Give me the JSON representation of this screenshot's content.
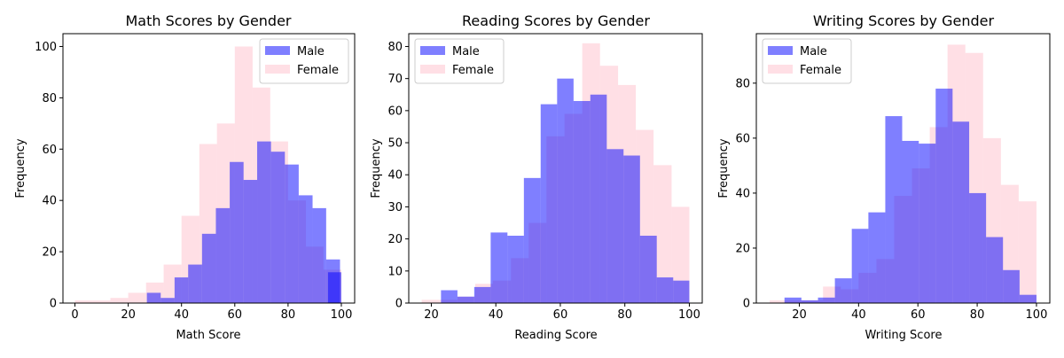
{
  "colors": {
    "male": "#0000ff",
    "female": "#ffc0cb",
    "axis": "#000000"
  },
  "chart_data": [
    {
      "type": "histogram",
      "title": "Math Scores by Gender",
      "xlabel": "Math Score",
      "ylabel": "Frequency",
      "xlim": [
        -4.5,
        105
      ],
      "ylim": [
        0,
        105
      ],
      "xticks": [
        0,
        20,
        40,
        60,
        80,
        100
      ],
      "yticks": [
        0,
        20,
        40,
        60,
        80,
        100
      ],
      "legend": "top-right",
      "series": [
        {
          "name": "Male",
          "color": "#0000ff",
          "alpha": 0.5,
          "bins": [
            [
              27,
              32.2,
              4
            ],
            [
              32.2,
              37.4,
              2
            ],
            [
              37.4,
              42.5,
              10
            ],
            [
              42.5,
              47.7,
              15
            ],
            [
              47.7,
              52.9,
              27
            ],
            [
              52.9,
              58.1,
              37
            ],
            [
              58.1,
              63.3,
              55
            ],
            [
              63.3,
              68.4,
              48
            ],
            [
              68.4,
              73.6,
              63
            ],
            [
              73.6,
              78.8,
              59
            ],
            [
              78.8,
              84,
              54
            ],
            [
              84,
              89.2,
              42
            ],
            [
              89.2,
              94.3,
              37
            ],
            [
              94.3,
              99.5,
              17
            ],
            [
              95,
              100,
              12
            ]
          ]
        },
        {
          "name": "Female",
          "color": "#ffc0cb",
          "alpha": 0.5,
          "bins": [
            [
              0,
              6.7,
              1
            ],
            [
              6.7,
              13.3,
              1
            ],
            [
              13.3,
              20,
              2
            ],
            [
              20,
              26.7,
              4
            ],
            [
              26.7,
              33.3,
              8
            ],
            [
              33.3,
              40,
              15
            ],
            [
              40,
              46.7,
              34
            ],
            [
              46.7,
              53.3,
              62
            ],
            [
              53.3,
              60,
              70
            ],
            [
              60,
              66.7,
              100
            ],
            [
              66.7,
              73.3,
              84
            ],
            [
              73.3,
              80,
              63
            ],
            [
              80,
              86.7,
              40
            ],
            [
              86.7,
              93.3,
              22
            ],
            [
              93.3,
              100,
              13
            ]
          ]
        }
      ]
    },
    {
      "type": "histogram",
      "title": "Reading Scores by Gender",
      "xlabel": "Reading Score",
      "ylabel": "Frequency",
      "xlim": [
        13,
        104
      ],
      "ylim": [
        0,
        84
      ],
      "xticks": [
        20,
        40,
        60,
        80,
        100
      ],
      "yticks": [
        0,
        10,
        20,
        30,
        40,
        50,
        60,
        70,
        80
      ],
      "legend": "top-left",
      "series": [
        {
          "name": "Male",
          "color": "#0000ff",
          "alpha": 0.5,
          "bins": [
            [
              23,
              28.1,
              4
            ],
            [
              28.1,
              33.3,
              2
            ],
            [
              33.3,
              38.4,
              5
            ],
            [
              38.4,
              43.6,
              22
            ],
            [
              43.6,
              48.7,
              21
            ],
            [
              48.7,
              53.9,
              39
            ],
            [
              53.9,
              59,
              62
            ],
            [
              59,
              64.1,
              70
            ],
            [
              64.1,
              69.3,
              63
            ],
            [
              69.3,
              74.4,
              65
            ],
            [
              74.4,
              79.6,
              48
            ],
            [
              79.6,
              84.7,
              46
            ],
            [
              84.7,
              89.9,
              21
            ],
            [
              89.9,
              95,
              8
            ],
            [
              95,
              100,
              7
            ]
          ]
        },
        {
          "name": "Female",
          "color": "#ffc0cb",
          "alpha": 0.5,
          "bins": [
            [
              17,
              22.5,
              1
            ],
            [
              22.5,
              28.1,
              1
            ],
            [
              28.1,
              33.6,
              2
            ],
            [
              33.6,
              39.1,
              6
            ],
            [
              39.1,
              44.7,
              7
            ],
            [
              44.7,
              50.2,
              14
            ],
            [
              50.2,
              55.7,
              25
            ],
            [
              55.7,
              61.3,
              52
            ],
            [
              61.3,
              66.8,
              59
            ],
            [
              66.8,
              72.3,
              81
            ],
            [
              72.3,
              77.9,
              74
            ],
            [
              77.9,
              83.4,
              68
            ],
            [
              83.4,
              88.9,
              54
            ],
            [
              88.9,
              94.5,
              43
            ],
            [
              94.5,
              100,
              30
            ]
          ]
        }
      ]
    },
    {
      "type": "histogram",
      "title": "Writing Scores by Gender",
      "xlabel": "Writing Score",
      "ylabel": "Frequency",
      "xlim": [
        5.5,
        104.5
      ],
      "ylim": [
        0,
        98
      ],
      "xticks": [
        20,
        40,
        60,
        80,
        100
      ],
      "yticks": [
        0,
        20,
        40,
        60,
        80
      ],
      "legend": "top-left",
      "series": [
        {
          "name": "Male",
          "color": "#0000ff",
          "alpha": 0.5,
          "bins": [
            [
              15,
              20.7,
              2
            ],
            [
              20.7,
              26.3,
              1
            ],
            [
              26.3,
              32,
              2
            ],
            [
              32,
              37.7,
              9
            ],
            [
              37.7,
              43.3,
              27
            ],
            [
              43.3,
              49,
              33
            ],
            [
              49,
              54.7,
              68
            ],
            [
              54.7,
              60.3,
              59
            ],
            [
              60.3,
              66,
              58
            ],
            [
              66,
              71.7,
              78
            ],
            [
              71.7,
              77.3,
              66
            ],
            [
              77.3,
              83,
              40
            ],
            [
              83,
              88.7,
              24
            ],
            [
              88.7,
              94.3,
              12
            ],
            [
              94.3,
              100,
              3
            ]
          ]
        },
        {
          "name": "Female",
          "color": "#ffc0cb",
          "alpha": 0.5,
          "bins": [
            [
              10,
              16,
              1
            ],
            [
              16,
              22,
              1
            ],
            [
              22,
              28,
              1
            ],
            [
              28,
              34,
              6
            ],
            [
              34,
              40,
              5
            ],
            [
              40,
              46,
              11
            ],
            [
              46,
              52,
              16
            ],
            [
              52,
              58,
              39
            ],
            [
              58,
              64,
              49
            ],
            [
              64,
              70,
              64
            ],
            [
              70,
              76,
              94
            ],
            [
              76,
              82,
              91
            ],
            [
              82,
              88,
              60
            ],
            [
              88,
              94,
              43
            ],
            [
              94,
              100,
              37
            ]
          ]
        }
      ]
    }
  ]
}
